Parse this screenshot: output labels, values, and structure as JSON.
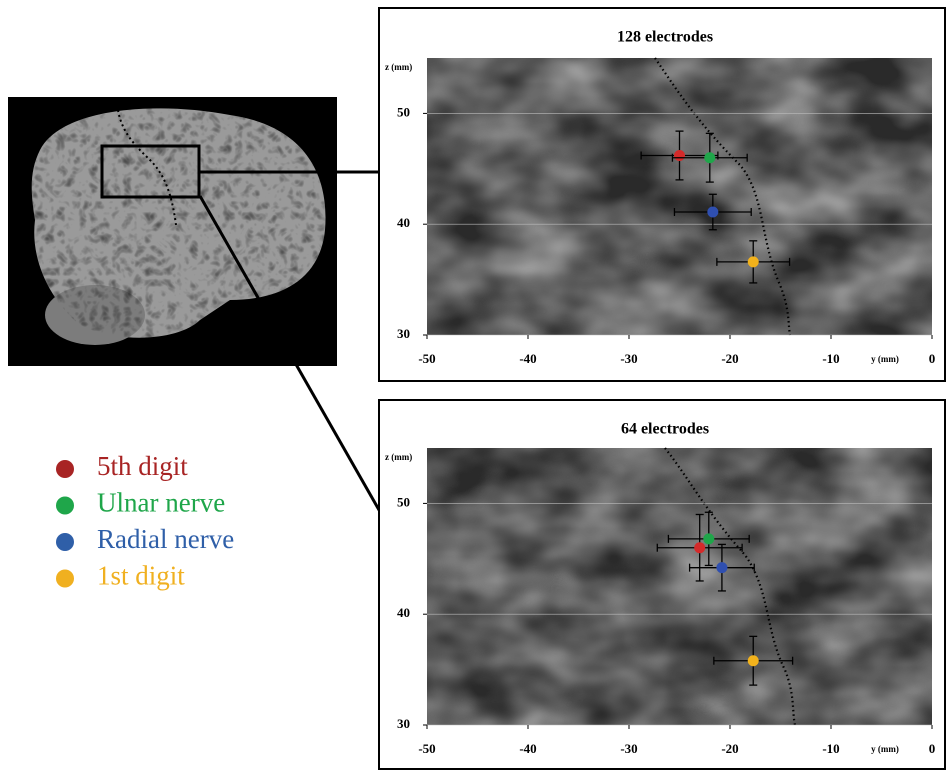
{
  "chart_data": [
    {
      "type": "scatter",
      "title": "128 electrodes",
      "x_label": "y (mm)",
      "y_label": "z (mm)",
      "xlim": [
        -50,
        0
      ],
      "ylim": [
        30,
        55
      ],
      "xticks": [
        -50,
        -40,
        -30,
        -20,
        -10,
        0
      ],
      "yticks": [
        30,
        40,
        50
      ],
      "series": [
        {
          "color": "#d42a2a",
          "x": [
            -25
          ],
          "y": [
            46.2
          ],
          "xerr": [
            3.8
          ],
          "yerr": [
            2.2
          ]
        },
        {
          "color": "#1fa64a",
          "x": [
            -22
          ],
          "y": [
            46
          ],
          "xerr": [
            3.7
          ],
          "yerr": [
            2.2
          ]
        },
        {
          "color": "#2f4fb0",
          "x": [
            -21.7
          ],
          "y": [
            41.1
          ],
          "xerr": [
            3.8
          ],
          "yerr": [
            1.6
          ]
        },
        {
          "color": "#f2b21c",
          "x": [
            -17.7
          ],
          "y": [
            36.6
          ],
          "xerr": [
            3.6
          ],
          "yerr": [
            1.9
          ]
        }
      ]
    },
    {
      "type": "scatter",
      "title": "64 electrodes",
      "x_label": "y (mm)",
      "y_label": "z (mm)",
      "xlim": [
        -50,
        0
      ],
      "ylim": [
        30,
        55
      ],
      "xticks": [
        -50,
        -40,
        -30,
        -20,
        -10,
        0
      ],
      "yticks": [
        30,
        40,
        50
      ],
      "series": [
        {
          "color": "#d42a2a",
          "x": [
            -23
          ],
          "y": [
            46
          ],
          "xerr": [
            4.2
          ],
          "yerr": [
            3
          ]
        },
        {
          "color": "#1fa64a",
          "x": [
            -22.1
          ],
          "y": [
            46.8
          ],
          "xerr": [
            4
          ],
          "yerr": [
            2.4
          ]
        },
        {
          "color": "#2f4fb0",
          "x": [
            -20.8
          ],
          "y": [
            44.2
          ],
          "xerr": [
            3.2
          ],
          "yerr": [
            2.1
          ]
        },
        {
          "color": "#f2b21c",
          "x": [
            -17.7
          ],
          "y": [
            35.8
          ],
          "xerr": [
            3.9
          ],
          "yerr": [
            2.2
          ]
        }
      ]
    }
  ],
  "legend": {
    "items": [
      {
        "label": "5th digit",
        "color": "#a82424"
      },
      {
        "label": "Ulnar nerve",
        "color": "#1fa64a"
      },
      {
        "label": "Radial nerve",
        "color": "#2f5fa8"
      },
      {
        "label": "1st digit",
        "color": "#f0b020"
      }
    ]
  }
}
